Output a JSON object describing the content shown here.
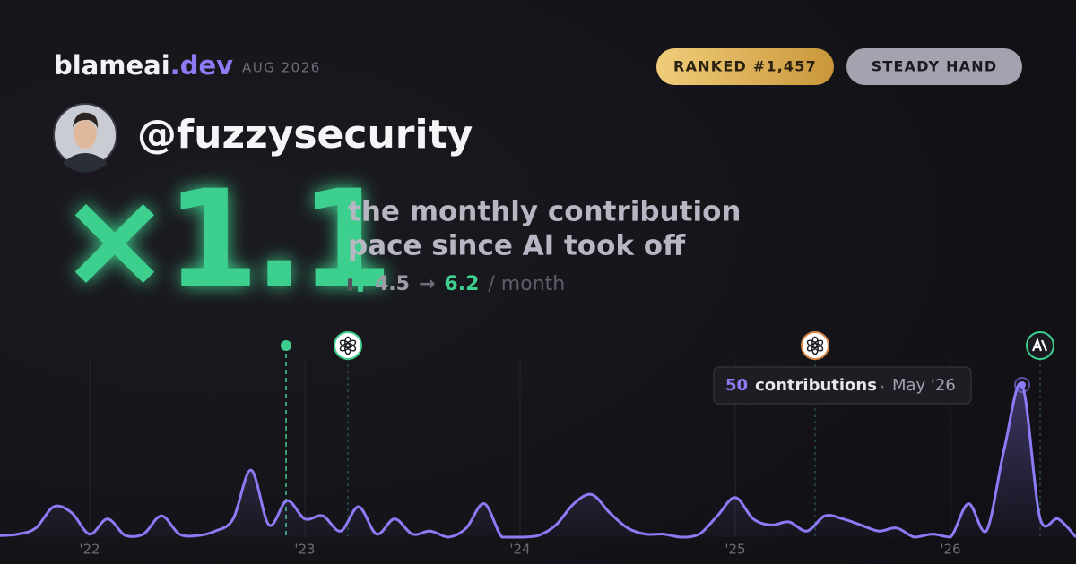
{
  "brand": {
    "name": "blameai",
    "tld": ".dev"
  },
  "period": "AUG 2026",
  "badges": [
    "RANKED #1,457",
    "STEADY HAND"
  ],
  "username": "@fuzzysecurity",
  "multiplier": "×1.1",
  "description": [
    "the monthly contribution",
    "pace since AI took off"
  ],
  "pace": {
    "before": 4.5,
    "arrow": "→",
    "after": 6.2,
    "unit": "/ month"
  },
  "chart_data": {
    "type": "line",
    "categories": [
      null,
      null,
      null,
      null,
      null,
      "'22",
      null,
      null,
      null,
      null,
      null,
      null,
      null,
      null,
      null,
      null,
      null,
      "'23",
      null,
      null,
      null,
      null,
      null,
      null,
      null,
      null,
      null,
      null,
      null,
      "'24",
      null,
      null,
      null,
      null,
      null,
      null,
      null,
      null,
      null,
      null,
      null,
      "'25",
      null,
      null,
      null,
      null,
      null,
      null,
      null,
      null,
      null,
      null,
      null,
      "'26",
      null,
      null,
      null,
      null,
      null,
      null,
      null
    ],
    "series": [
      {
        "name": "contributions",
        "color": "#8b7cf6",
        "values": [
          0.5,
          1,
          3,
          10,
          8,
          1,
          6,
          0.5,
          1,
          7,
          1,
          0.5,
          2,
          6,
          22,
          4,
          12,
          6,
          7,
          2,
          10,
          1,
          6,
          1,
          2,
          0,
          3,
          11,
          0,
          0,
          0.5,
          4,
          11,
          14,
          8,
          3,
          1,
          1,
          0,
          1,
          7,
          13,
          6,
          4,
          5,
          2,
          7,
          6,
          4,
          2,
          3,
          0,
          1,
          0,
          11,
          2,
          29,
          50,
          6,
          6,
          0
        ]
      }
    ],
    "ylim": [
      0,
      50
    ],
    "tooltip": {
      "index": 57,
      "label": "contributions",
      "date": "May '26"
    }
  }
}
